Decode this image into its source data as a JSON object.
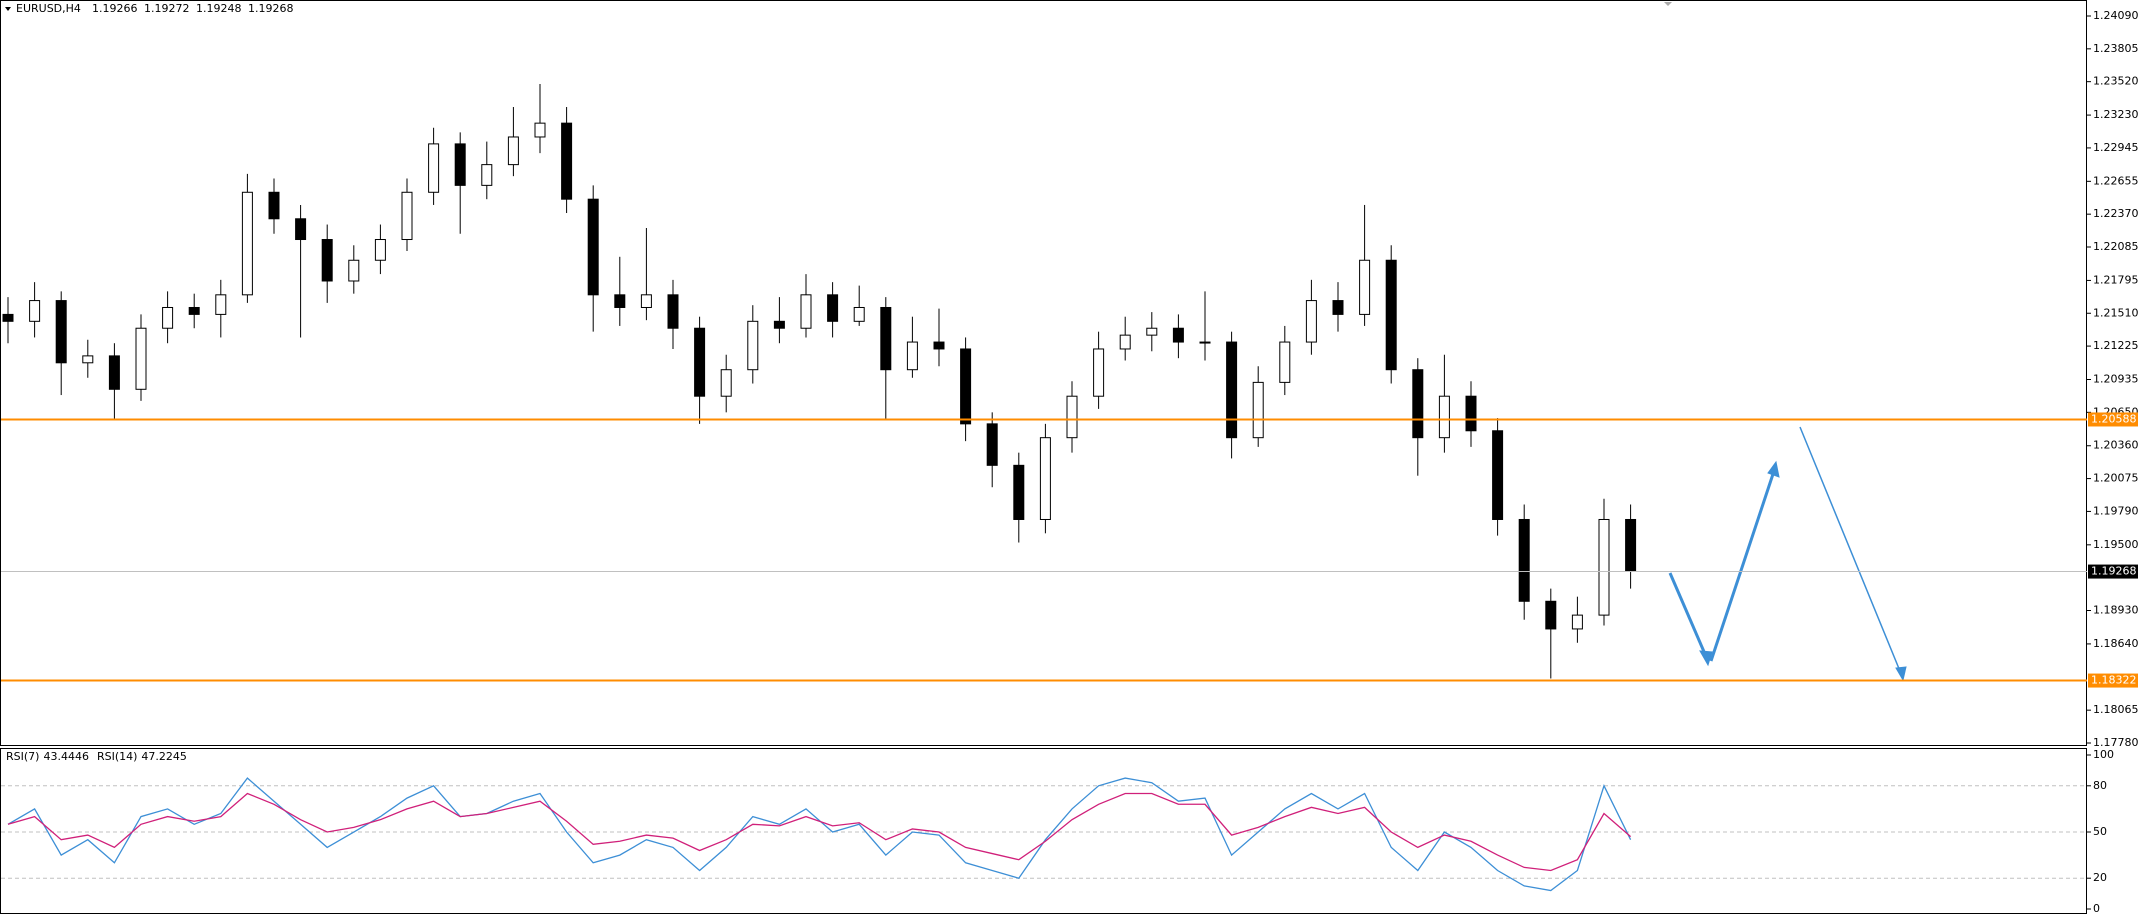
{
  "chart_data": [
    {
      "type": "candlestick",
      "symbol": "EURUSD,H4",
      "quote": [
        1.19266,
        1.19272,
        1.19248,
        1.19268
      ],
      "open": [
        1.215,
        1.2144,
        1.2162,
        1.2108,
        1.2114,
        1.2085,
        1.2138,
        1.2156,
        1.215,
        1.2167,
        1.2256,
        1.2233,
        1.2215,
        1.2179,
        1.2197,
        1.2215,
        1.2256,
        1.2298,
        1.2262,
        1.228,
        1.2304,
        1.2316,
        1.225,
        1.2167,
        1.2156,
        1.2167,
        1.2138,
        1.2079,
        1.2102,
        1.2144,
        1.2138,
        1.2167,
        1.2144,
        1.2156,
        1.2102,
        1.2126,
        1.212,
        1.2055,
        1.2019,
        1.1972,
        1.2043,
        1.2079,
        1.212,
        1.2132,
        1.2138,
        1.2126,
        1.2126,
        1.2043,
        1.2091,
        1.2126,
        1.2162,
        1.215,
        1.2197,
        1.2102,
        1.2043,
        1.2079,
        1.2049,
        1.1972,
        1.1901,
        1.1877,
        1.1889,
        1.1972
      ],
      "high": [
        1.2165,
        1.2178,
        1.217,
        1.2128,
        1.2125,
        1.215,
        1.217,
        1.2168,
        1.218,
        1.2272,
        1.2268,
        1.2245,
        1.2228,
        1.221,
        1.2228,
        1.2268,
        1.2312,
        1.2308,
        1.23,
        1.233,
        1.235,
        1.233,
        1.2262,
        1.22,
        1.2225,
        1.218,
        1.2148,
        1.2115,
        1.2158,
        1.2165,
        1.2185,
        1.2178,
        1.2175,
        1.2165,
        1.2148,
        1.2155,
        1.213,
        1.2065,
        1.203,
        1.2055,
        1.2092,
        1.2135,
        1.2148,
        1.2152,
        1.215,
        1.217,
        1.2135,
        1.2105,
        1.214,
        1.218,
        1.2178,
        1.2245,
        1.221,
        1.2112,
        1.2115,
        1.2092,
        1.206,
        1.1985,
        1.1912,
        1.1905,
        1.199,
        1.1985
      ],
      "low": [
        1.2125,
        1.213,
        1.208,
        1.2095,
        1.2058,
        1.2075,
        1.2125,
        1.2138,
        1.213,
        1.216,
        1.222,
        1.213,
        1.216,
        1.2168,
        1.2185,
        1.2205,
        1.2245,
        1.222,
        1.225,
        1.227,
        1.229,
        1.2238,
        1.2135,
        1.214,
        1.2145,
        1.212,
        1.2055,
        1.2065,
        1.209,
        1.2125,
        1.213,
        1.213,
        1.214,
        1.2058,
        1.2095,
        1.2105,
        1.204,
        1.2,
        1.1952,
        1.196,
        1.203,
        1.2068,
        1.211,
        1.2118,
        1.2112,
        1.211,
        1.2025,
        1.2035,
        1.208,
        1.2115,
        1.2135,
        1.214,
        1.209,
        1.201,
        1.203,
        1.2035,
        1.1958,
        1.1885,
        1.1834,
        1.1865,
        1.188,
        1.1912
      ],
      "close": [
        1.2144,
        1.2162,
        1.2108,
        1.2114,
        1.2085,
        1.2138,
        1.2156,
        1.215,
        1.2167,
        1.2256,
        1.2233,
        1.2215,
        1.2179,
        1.2197,
        1.2215,
        1.2256,
        1.2298,
        1.2262,
        1.228,
        1.2304,
        1.2316,
        1.225,
        1.2167,
        1.2156,
        1.2167,
        1.2138,
        1.2079,
        1.2102,
        1.2144,
        1.2138,
        1.2167,
        1.2144,
        1.2156,
        1.2102,
        1.2126,
        1.212,
        1.2055,
        1.2019,
        1.1972,
        1.2043,
        1.2079,
        1.212,
        1.2132,
        1.2138,
        1.2126,
        1.2126,
        1.2043,
        1.2091,
        1.2126,
        1.2162,
        1.215,
        1.2197,
        1.2102,
        1.2043,
        1.2079,
        1.2049,
        1.1972,
        1.1901,
        1.1877,
        1.1889,
        1.1972,
        1.1927
      ],
      "ylim": [
        1.1778,
        1.2409
      ],
      "yticks": [
        {
          "value": 1.2409,
          "label": "1.24090"
        },
        1.23805,
        {
          "value": 1.2352,
          "label": "1.23520"
        },
        {
          "value": 1.2323,
          "label": "1.23230"
        },
        1.22945,
        1.22655,
        {
          "value": 1.2237,
          "label": "1.22370"
        },
        1.22085,
        1.21795,
        {
          "value": 1.2151,
          "label": "1.21510"
        },
        1.21225,
        1.20935,
        {
          "value": 1.2065,
          "label": "1.20650"
        },
        {
          "value": 1.2036,
          "label": "1.20360"
        },
        1.20075,
        {
          "value": 1.1979,
          "label": "1.19790"
        },
        {
          "value": 1.195,
          "label": "1.19500"
        },
        {
          "value": 1.1893,
          "label": "1.18930"
        },
        {
          "value": 1.1864,
          "label": "1.18640"
        },
        1.18065,
        {
          "value": 1.1778,
          "label": "1.17780"
        }
      ],
      "levels": [
        {
          "value": 1.20588,
          "color": "#ff8c00"
        },
        {
          "value": 1.18322,
          "color": "#ff8c00"
        }
      ],
      "price": 1.19268
    },
    {
      "type": "line",
      "series": [
        {
          "name": "RSI(7)",
          "last": 43.4446,
          "color": "#3d8fd6",
          "values": [
            55,
            65,
            35,
            45,
            30,
            60,
            65,
            55,
            62,
            85,
            70,
            55,
            40,
            50,
            60,
            72,
            80,
            60,
            62,
            70,
            75,
            50,
            30,
            35,
            45,
            40,
            25,
            40,
            60,
            55,
            65,
            50,
            55,
            35,
            50,
            48,
            30,
            25,
            20,
            45,
            65,
            80,
            85,
            82,
            70,
            72,
            35,
            50,
            65,
            75,
            65,
            75,
            40,
            25,
            50,
            40,
            25,
            15,
            12,
            25,
            80,
            45
          ]
        },
        {
          "name": "RSI(14)",
          "last": 47.2245,
          "color": "#d0207a",
          "values": [
            55,
            60,
            45,
            48,
            40,
            55,
            60,
            57,
            60,
            75,
            68,
            58,
            50,
            53,
            58,
            65,
            70,
            60,
            62,
            66,
            70,
            57,
            42,
            44,
            48,
            46,
            38,
            45,
            55,
            54,
            60,
            54,
            56,
            45,
            52,
            50,
            40,
            36,
            32,
            44,
            58,
            68,
            75,
            75,
            68,
            68,
            48,
            53,
            60,
            66,
            62,
            66,
            50,
            40,
            48,
            44,
            35,
            27,
            25,
            32,
            62,
            47
          ]
        }
      ],
      "ylim": [
        0,
        100
      ],
      "yticks": [
        100,
        80,
        50,
        20,
        0
      ],
      "levels": [
        80,
        50,
        20
      ]
    }
  ]
}
